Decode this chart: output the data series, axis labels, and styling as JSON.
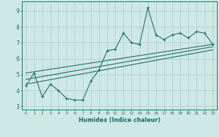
{
  "xlabel": "Humidex (Indice chaleur)",
  "bg_color": "#cde8e5",
  "grid_color": "#b0ceca",
  "line_color": "#1a6b60",
  "xlim": [
    -0.5,
    23.5
  ],
  "ylim": [
    2.8,
    9.6
  ],
  "xticks": [
    0,
    1,
    2,
    3,
    4,
    5,
    6,
    7,
    8,
    9,
    10,
    11,
    12,
    13,
    14,
    15,
    16,
    17,
    18,
    19,
    20,
    21,
    22,
    23
  ],
  "yticks": [
    3,
    4,
    5,
    6,
    7,
    8,
    9
  ],
  "scatter_x": [
    0,
    1,
    2,
    3,
    4,
    5,
    6,
    7,
    8,
    9,
    10,
    11,
    12,
    13,
    14,
    15,
    16,
    17,
    18,
    19,
    20,
    21,
    22,
    23
  ],
  "scatter_y": [
    4.3,
    5.1,
    3.6,
    4.4,
    4.0,
    3.5,
    3.4,
    3.4,
    4.6,
    5.3,
    6.5,
    6.6,
    7.6,
    7.0,
    6.9,
    9.2,
    7.5,
    7.2,
    7.5,
    7.6,
    7.3,
    7.7,
    7.6,
    6.9
  ],
  "reg_line1": {
    "x": [
      0,
      23
    ],
    "y": [
      5.1,
      6.9
    ]
  },
  "reg_line2": {
    "x": [
      0,
      23
    ],
    "y": [
      4.7,
      6.75
    ]
  },
  "reg_line3": {
    "x": [
      0,
      23
    ],
    "y": [
      4.4,
      6.55
    ]
  }
}
